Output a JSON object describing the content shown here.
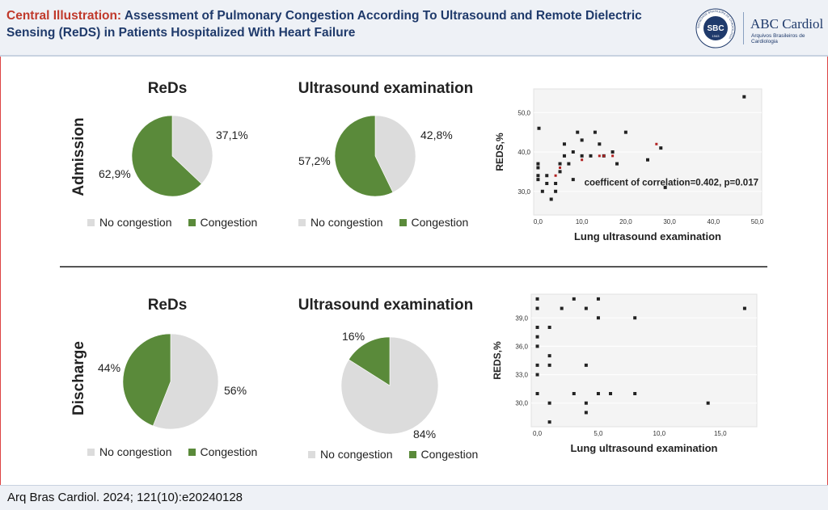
{
  "header": {
    "lead": "Central Illustration:",
    "title": "Assessment of Pulmonary Congestion According To Ultrasound and Remote Dielectric Sensing (ReDS) in Patients Hospitalized With Heart Failure",
    "logo_name": "ABC Cardiol",
    "logo_sub": "Arquivos Brasileiros de Cardiologia",
    "seal_text": "SBC",
    "seal_ring": "SOCIEDADE BRASILEIRA DE CARDIOLOGIA",
    "seal_year": "1943"
  },
  "colors": {
    "no_congestion": "#dcdcdc",
    "congestion": "#5a8a3a",
    "accent": "#c0392b",
    "navy": "#1f3a6b"
  },
  "admission": {
    "label": "Admission",
    "reds": {
      "title": "ReDs",
      "no_label": "37,1%",
      "cong_label": "62,9%"
    },
    "us": {
      "title": "Ultrasound examination",
      "no_label": "42,8%",
      "cong_label": "57,2%"
    }
  },
  "discharge": {
    "label": "Discharge",
    "reds": {
      "title": "ReDs",
      "no_label": "56%",
      "cong_label": "44%"
    },
    "us": {
      "title": "Ultrasound examination",
      "no_label": "84%",
      "cong_label": "16%"
    }
  },
  "legend": {
    "no": "No congestion",
    "yes": "Congestion"
  },
  "chart_data": [
    {
      "type": "pie",
      "title": "ReDs (Admission)",
      "categories": [
        "No congestion",
        "Congestion"
      ],
      "values": [
        37.1,
        62.9
      ]
    },
    {
      "type": "pie",
      "title": "Ultrasound examination (Admission)",
      "categories": [
        "No congestion",
        "Congestion"
      ],
      "values": [
        42.8,
        57.2
      ]
    },
    {
      "type": "scatter",
      "title": "Admission",
      "xlabel": "Lung ultrasound examination",
      "ylabel": "REDS,%",
      "xlim": [
        -1,
        51
      ],
      "ylim": [
        24,
        56
      ],
      "xticks": [
        "0,0",
        "10,0",
        "20,0",
        "30,0",
        "40,0",
        "50,0"
      ],
      "xtick_values": [
        0,
        10,
        20,
        30,
        40,
        50
      ],
      "yticks": [
        "30,0",
        "40,0",
        "50,0"
      ],
      "ytick_values": [
        30,
        40,
        50
      ],
      "annotation": "coefficent of correlation=0.402, p=0.017",
      "points": [
        [
          0,
          37
        ],
        [
          0,
          36
        ],
        [
          0,
          34
        ],
        [
          0,
          33
        ],
        [
          0.2,
          46
        ],
        [
          1,
          30
        ],
        [
          2,
          32
        ],
        [
          2,
          34
        ],
        [
          3,
          28
        ],
        [
          4,
          32
        ],
        [
          4,
          30
        ],
        [
          5,
          35
        ],
        [
          5,
          37
        ],
        [
          6,
          39
        ],
        [
          6,
          42
        ],
        [
          7,
          37
        ],
        [
          8,
          33
        ],
        [
          8,
          40
        ],
        [
          9,
          45
        ],
        [
          10,
          39
        ],
        [
          10,
          43
        ],
        [
          12,
          39
        ],
        [
          13,
          45
        ],
        [
          14,
          42
        ],
        [
          15,
          39
        ],
        [
          17,
          40
        ],
        [
          18,
          37
        ],
        [
          20,
          45
        ],
        [
          25,
          38
        ],
        [
          28,
          41
        ],
        [
          29,
          31
        ],
        [
          47,
          54
        ]
      ],
      "red_points": [
        [
          4,
          34
        ],
        [
          5,
          36
        ],
        [
          10,
          38
        ],
        [
          14,
          39
        ],
        [
          15,
          39
        ],
        [
          17,
          39
        ],
        [
          27,
          42
        ]
      ]
    },
    {
      "type": "pie",
      "title": "ReDs (Discharge)",
      "categories": [
        "No congestion",
        "Congestion"
      ],
      "values": [
        56,
        44
      ]
    },
    {
      "type": "pie",
      "title": "Ultrasound examination (Discharge)",
      "categories": [
        "No congestion",
        "Congestion"
      ],
      "values": [
        84,
        16
      ]
    },
    {
      "type": "scatter",
      "title": "Discharge",
      "xlabel": "Lung ultrasound examination",
      "ylabel": "REDS,%",
      "xlim": [
        -0.5,
        18
      ],
      "ylim": [
        27.5,
        41.5
      ],
      "xticks": [
        "0,0",
        "5,0",
        "10,0",
        "15,0"
      ],
      "xtick_values": [
        0,
        5,
        10,
        15
      ],
      "yticks": [
        "30,0",
        "33,0",
        "36,0",
        "39,0"
      ],
      "ytick_values": [
        30,
        33,
        36,
        39
      ],
      "points": [
        [
          0,
          41
        ],
        [
          0,
          40
        ],
        [
          0,
          38
        ],
        [
          0,
          37
        ],
        [
          0,
          36
        ],
        [
          0,
          34
        ],
        [
          0,
          33
        ],
        [
          0,
          31
        ],
        [
          1,
          38
        ],
        [
          1,
          35
        ],
        [
          1,
          34
        ],
        [
          1,
          30
        ],
        [
          1,
          28
        ],
        [
          2,
          40
        ],
        [
          3,
          41
        ],
        [
          3,
          31
        ],
        [
          4,
          40
        ],
        [
          4,
          34
        ],
        [
          4,
          30
        ],
        [
          4,
          29
        ],
        [
          5,
          41
        ],
        [
          5,
          39
        ],
        [
          5,
          31
        ],
        [
          6,
          31
        ],
        [
          8,
          39
        ],
        [
          8,
          31
        ],
        [
          14,
          30
        ],
        [
          17,
          40
        ]
      ]
    }
  ],
  "citation": "Arq Bras Cardiol. 2024; 121(10):e20240128"
}
